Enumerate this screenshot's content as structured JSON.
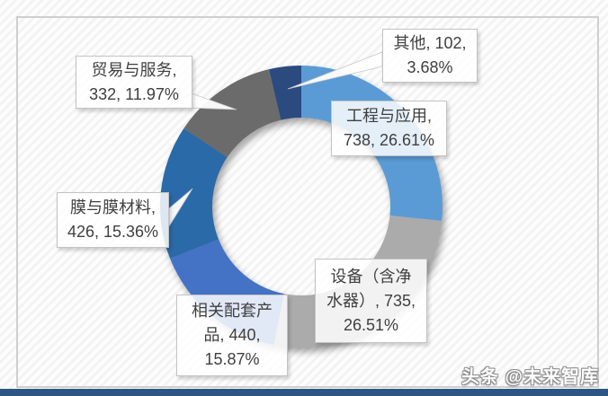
{
  "watermark": "头条 @未来智库",
  "bottom_bar_color": "#2E5684",
  "chart_data": {
    "type": "pie",
    "subtype": "donut",
    "title": "",
    "categories": [
      "工程与应用",
      "设备（含净水器）",
      "相关配套产品",
      "膜与膜材料",
      "贸易与服务",
      "其他"
    ],
    "values": [
      738,
      735,
      440,
      426,
      332,
      102
    ],
    "percents": [
      "26.61%",
      "26.51%",
      "15.87%",
      "15.36%",
      "11.97%",
      "3.68%"
    ],
    "colors": [
      "#5B9BD5",
      "#ABABAB",
      "#4472C4",
      "#2A6AA8",
      "#6B6B6B",
      "#2B4A80"
    ],
    "start_angle": 0,
    "direction": "clockwise",
    "inner_radius_ratio": 0.63,
    "legend": "none",
    "labels_style": "callout-boxes"
  },
  "callouts": {
    "engineering": {
      "text": "工程与应用,\n738, 26.61%"
    },
    "equipment": {
      "text": "设备（含净\n水器）, 735,\n26.51%"
    },
    "accessories": {
      "text": "相关配套产\n品, 440,\n15.87%"
    },
    "membrane": {
      "text": "膜与膜材料,\n426, 15.36%"
    },
    "trade": {
      "text": "贸易与服务,\n332, 11.97%"
    },
    "other": {
      "text": "其他, 102,\n3.68%"
    }
  }
}
